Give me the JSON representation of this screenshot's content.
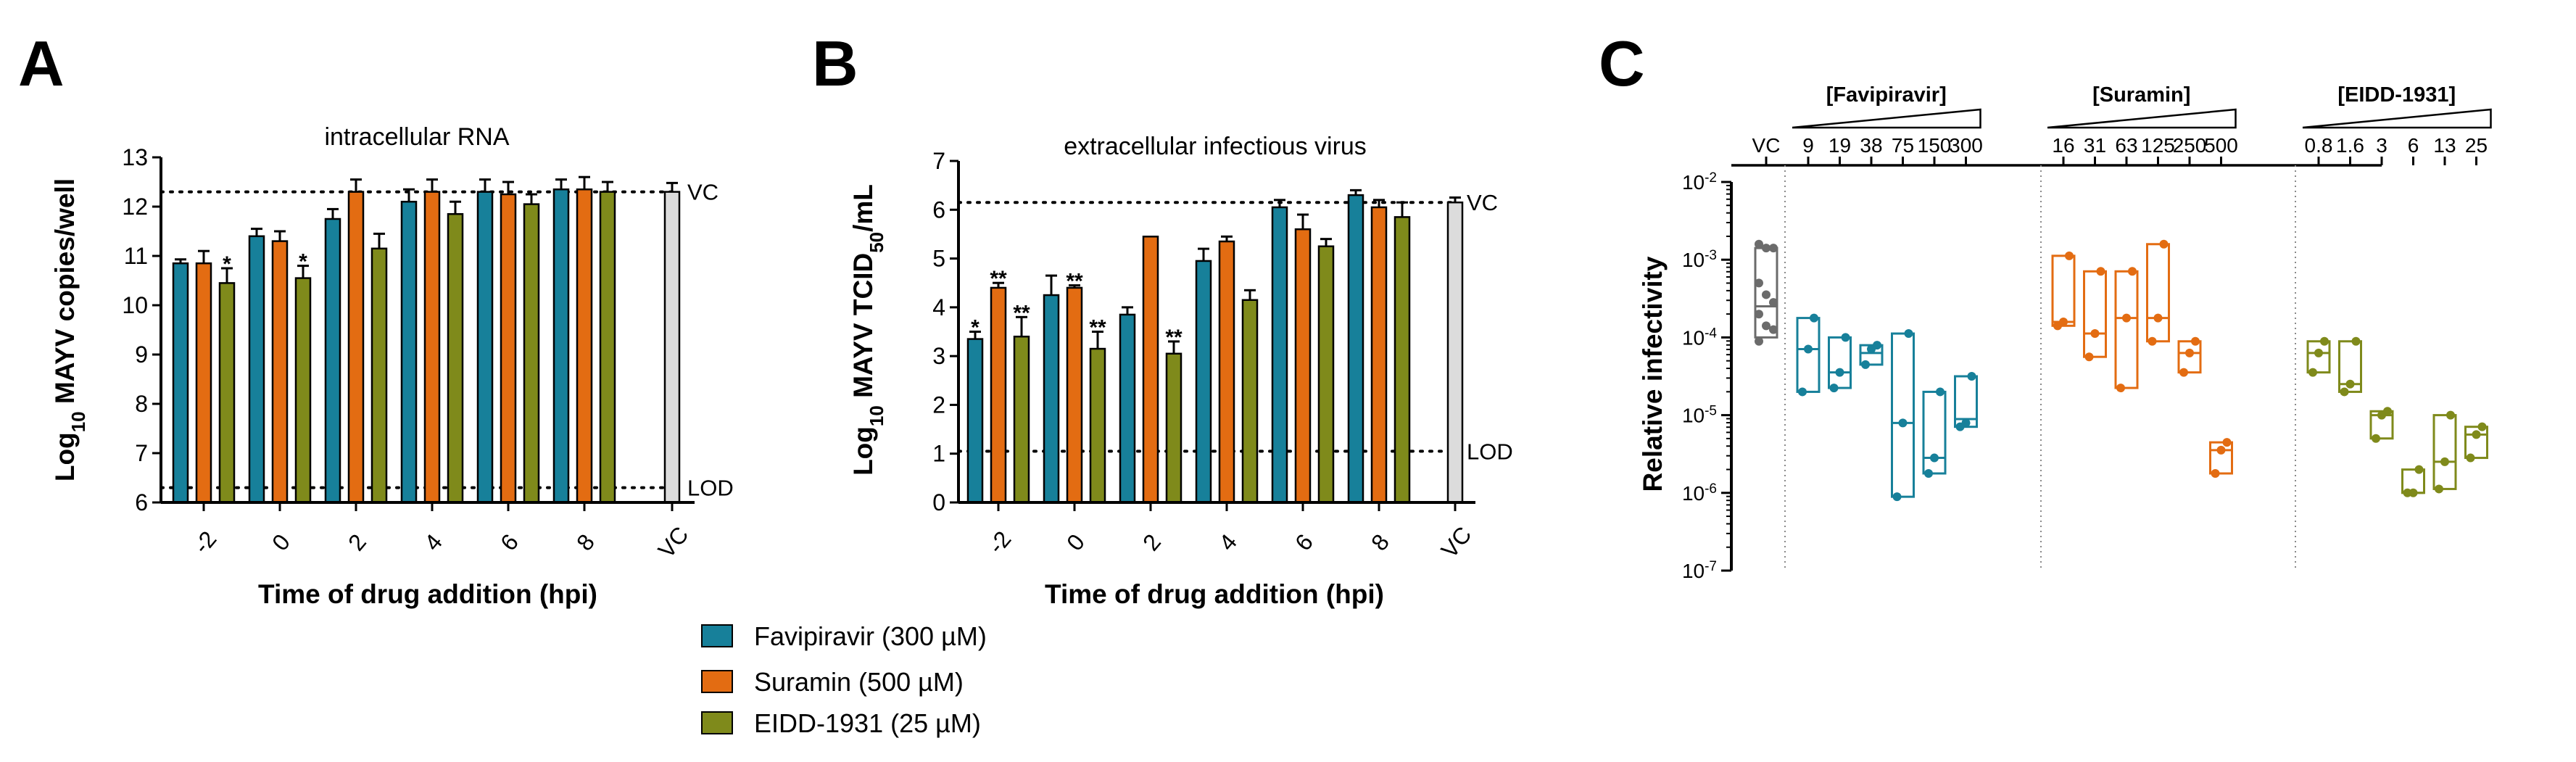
{
  "panels": {
    "a": "A",
    "b": "B",
    "c": "C"
  },
  "colors": {
    "favipiravir": "#17809a",
    "suramin": "#e36c12",
    "eidd": "#7f8a1b",
    "vc": "#dcdcdc",
    "vc_box": "#6b6b6b",
    "ref_line": "#000000"
  },
  "legend": [
    {
      "label": "Favipiravir (300 µM)",
      "color": "#17809a"
    },
    {
      "label": "Suramin (500 µM)",
      "color": "#e36c12"
    },
    {
      "label": "EIDD-1931 (25 µM)",
      "color": "#7f8a1b"
    }
  ],
  "chart_data": [
    {
      "type": "bar",
      "title": "intracellular RNA",
      "xlabel": "Time of drug addition (hpi)",
      "ylabel": "Log10 MAYV copies/well",
      "ylabel_main": "Log",
      "ylabel_sub": "10",
      "ylabel_rest": " MAYV copies/well",
      "ylim": [
        6,
        13
      ],
      "yticks": [
        "6",
        "7",
        "8",
        "9",
        "10",
        "11",
        "12",
        "13"
      ],
      "categories": [
        "-2",
        "0",
        "2",
        "4",
        "6",
        "8"
      ],
      "series": [
        {
          "name": "Favipiravir (300 µM)",
          "values": [
            10.85,
            11.4,
            11.75,
            12.1,
            12.3,
            12.35
          ],
          "errors": [
            0.08,
            0.15,
            0.2,
            0.25,
            0.25,
            0.2
          ],
          "stars": [
            "",
            "",
            "",
            "",
            "",
            ""
          ]
        },
        {
          "name": "Suramin (500 µM)",
          "values": [
            10.85,
            11.3,
            12.3,
            12.3,
            12.25,
            12.35
          ],
          "errors": [
            0.25,
            0.2,
            0.25,
            0.25,
            0.25,
            0.25
          ],
          "stars": [
            "",
            "",
            "",
            "",
            "",
            ""
          ]
        },
        {
          "name": "EIDD-1931 (25 µM)",
          "values": [
            10.45,
            10.55,
            11.15,
            11.85,
            12.05,
            12.3
          ],
          "errors": [
            0.3,
            0.25,
            0.3,
            0.25,
            0.2,
            0.2
          ],
          "stars": [
            "*",
            "*",
            "",
            "",
            "",
            ""
          ]
        }
      ],
      "vc": {
        "label": "VC",
        "value": 12.3,
        "error": 0.18
      },
      "refs": [
        {
          "label": "VC",
          "value": 12.3
        },
        {
          "label": "LOD",
          "value": 6.3
        }
      ]
    },
    {
      "type": "bar",
      "title": "extracellular infectious virus",
      "xlabel": "Time of drug addition (hpi)",
      "ylabel": "Log10 MAYV TCID50/mL",
      "ylabel_main": "Log",
      "ylabel_sub": "10",
      "ylabel_rest": " MAYV TCID",
      "ylabel_sub2": "50",
      "ylabel_rest2": "/mL",
      "ylim": [
        0,
        7
      ],
      "yticks": [
        "0",
        "1",
        "2",
        "3",
        "4",
        "5",
        "6",
        "7"
      ],
      "categories": [
        "-2",
        "0",
        "2",
        "4",
        "6",
        "8"
      ],
      "series": [
        {
          "name": "Favipiravir (300 µM)",
          "values": [
            3.35,
            4.25,
            3.85,
            4.95,
            6.05,
            6.3
          ],
          "errors": [
            0.15,
            0.4,
            0.15,
            0.25,
            0.15,
            0.1
          ],
          "stars": [
            "*",
            "",
            "",
            "",
            "",
            ""
          ]
        },
        {
          "name": "Suramin (500 µM)",
          "values": [
            4.4,
            4.4,
            5.45,
            5.35,
            5.6,
            6.05
          ],
          "errors": [
            0.1,
            0.05,
            0.0,
            0.1,
            0.3,
            0.15
          ],
          "stars": [
            "**",
            "**",
            "",
            "",
            "",
            ""
          ]
        },
        {
          "name": "EIDD-1931 (25 µM)",
          "values": [
            3.4,
            3.15,
            3.05,
            4.15,
            5.25,
            5.85
          ],
          "errors": [
            0.4,
            0.35,
            0.25,
            0.2,
            0.15,
            0.3
          ],
          "stars": [
            "**",
            "**",
            "**",
            "",
            "",
            ""
          ]
        }
      ],
      "vc": {
        "label": "VC",
        "value": 6.15,
        "error": 0.1
      },
      "refs": [
        {
          "label": "VC",
          "value": 6.15
        },
        {
          "label": "LOD",
          "value": 1.05
        }
      ]
    },
    {
      "type": "box",
      "title": "",
      "xlabel": "",
      "ylabel": "Relative infectivity",
      "ylim_log10": [
        -7,
        -2
      ],
      "yticks": [
        {
          "exp": -2,
          "base": "10",
          "sup": "-2"
        },
        {
          "exp": -3,
          "base": "10",
          "sup": "-3"
        },
        {
          "exp": -4,
          "base": "10",
          "sup": "-4"
        },
        {
          "exp": -5,
          "base": "10",
          "sup": "-5"
        },
        {
          "exp": -6,
          "base": "10",
          "sup": "-6"
        },
        {
          "exp": -7,
          "base": "10",
          "sup": "-7"
        }
      ],
      "groups": [
        {
          "name": "VC",
          "label": "",
          "color": "#6b6b6b",
          "concentrations": [
            "VC"
          ],
          "boxes": [
            {
              "min": -4.05,
              "q1": -4.0,
              "median": -3.6,
              "q3": -2.85,
              "max": -2.8,
              "points": [
                -2.8,
                -2.85,
                -2.85,
                -3.3,
                -3.45,
                -3.55,
                -3.7,
                -3.85,
                -3.9,
                -4.05
              ]
            }
          ]
        },
        {
          "name": "Favipiravir",
          "label": "[Favipiravir]",
          "color": "#17809a",
          "concentrations": [
            "9",
            "19",
            "38",
            "75",
            "150",
            "300"
          ],
          "boxes": [
            {
              "min": -4.7,
              "q1": -4.7,
              "median": -4.15,
              "q3": -3.75,
              "max": -3.75,
              "points": [
                -3.75,
                -4.15,
                -4.7
              ]
            },
            {
              "min": -4.65,
              "q1": -4.65,
              "median": -4.45,
              "q3": -4.0,
              "max": -4.0,
              "points": [
                -4.0,
                -4.45,
                -4.65
              ]
            },
            {
              "min": -4.35,
              "q1": -4.35,
              "median": -4.2,
              "q3": -4.1,
              "max": -4.1,
              "points": [
                -4.1,
                -4.15,
                -4.35
              ]
            },
            {
              "min": -6.05,
              "q1": -6.05,
              "median": -5.1,
              "q3": -3.95,
              "max": -3.95,
              "points": [
                -3.95,
                -5.1,
                -6.05
              ]
            },
            {
              "min": -5.75,
              "q1": -5.75,
              "median": -5.55,
              "q3": -4.7,
              "max": -4.7,
              "points": [
                -4.7,
                -5.55,
                -5.75
              ]
            },
            {
              "min": -5.15,
              "q1": -5.15,
              "median": -5.05,
              "q3": -4.5,
              "max": -4.5,
              "points": [
                -4.5,
                -5.1,
                -5.15
              ]
            }
          ]
        },
        {
          "name": "Suramin",
          "label": "[Suramin]",
          "color": "#e36c12",
          "concentrations": [
            "16",
            "31",
            "63",
            "125",
            "250",
            "500"
          ],
          "boxes": [
            {
              "min": -3.85,
              "q1": -3.85,
              "median": -3.8,
              "q3": -2.95,
              "max": -2.95,
              "points": [
                -2.95,
                -3.8,
                -3.85
              ]
            },
            {
              "min": -4.25,
              "q1": -4.25,
              "median": -3.95,
              "q3": -3.15,
              "max": -3.15,
              "points": [
                -3.15,
                -3.95,
                -4.25
              ]
            },
            {
              "min": -4.65,
              "q1": -4.65,
              "median": -3.75,
              "q3": -3.15,
              "max": -3.15,
              "points": [
                -3.15,
                -3.75,
                -4.65
              ]
            },
            {
              "min": -4.05,
              "q1": -4.05,
              "median": -3.75,
              "q3": -2.8,
              "max": -2.8,
              "points": [
                -2.8,
                -3.75,
                -4.05
              ]
            },
            {
              "min": -4.45,
              "q1": -4.45,
              "median": -4.2,
              "q3": -4.05,
              "max": -4.05,
              "points": [
                -4.05,
                -4.2,
                -4.45
              ]
            },
            {
              "min": -5.75,
              "q1": -5.75,
              "median": -5.45,
              "q3": -5.35,
              "max": -5.35,
              "points": [
                -5.35,
                -5.45,
                -5.75
              ]
            }
          ]
        },
        {
          "name": "EIDD-1931",
          "label": "[EIDD-1931]",
          "color": "#7f8a1b",
          "concentrations": [
            "0.8",
            "1.6",
            "3",
            "6",
            "13",
            "25"
          ],
          "boxes": [
            {
              "min": -4.45,
              "q1": -4.45,
              "median": -4.2,
              "q3": -4.05,
              "max": -4.05,
              "points": [
                -4.05,
                -4.2,
                -4.45
              ]
            },
            {
              "min": -4.7,
              "q1": -4.7,
              "median": -4.6,
              "q3": -4.05,
              "max": -4.05,
              "points": [
                -4.05,
                -4.6,
                -4.7
              ]
            },
            {
              "min": -5.3,
              "q1": -5.3,
              "median": -5.0,
              "q3": -4.95,
              "max": -4.95,
              "points": [
                -4.95,
                -5.0,
                -5.3
              ]
            },
            {
              "min": -6.0,
              "q1": -6.0,
              "median": -6.0,
              "q3": -5.7,
              "max": -5.7,
              "points": [
                -5.7,
                -6.0,
                -6.0
              ]
            },
            {
              "min": -5.95,
              "q1": -5.95,
              "median": -5.6,
              "q3": -5.0,
              "max": -5.0,
              "points": [
                -5.0,
                -5.6,
                -5.95
              ]
            },
            {
              "min": -5.55,
              "q1": -5.55,
              "median": -5.25,
              "q3": -5.15,
              "max": -5.15,
              "points": [
                -5.15,
                -5.25,
                -5.55
              ]
            }
          ]
        }
      ]
    }
  ]
}
